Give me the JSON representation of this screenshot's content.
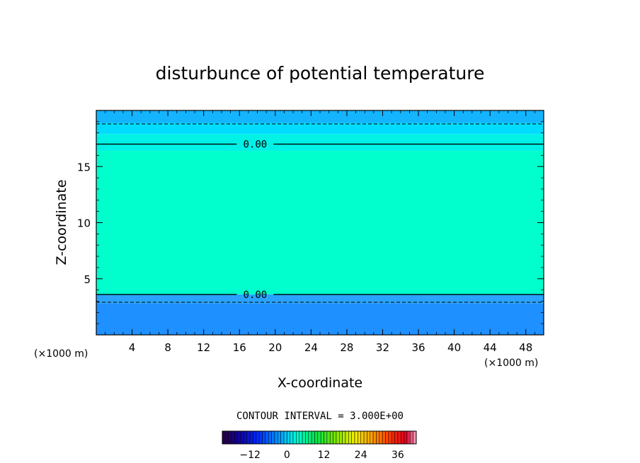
{
  "chart_data": {
    "type": "heatmap",
    "title": "disturbunce of potential temperature",
    "xlabel": "X-coordinate",
    "ylabel": "Z-coordinate",
    "x_unit_left": "(×1000 m)",
    "x_unit_right": "(×1000 m)",
    "xlim": [
      0,
      50
    ],
    "ylim": [
      0,
      20
    ],
    "x_ticks": [
      4,
      8,
      12,
      16,
      20,
      24,
      28,
      32,
      36,
      40,
      44,
      48
    ],
    "y_ticks": [
      5,
      10,
      15
    ],
    "field_levels": [
      {
        "z_from": 0,
        "z_to": 2.8,
        "value": -3,
        "color": "#1e90ff"
      },
      {
        "z_from": 2.8,
        "z_to": 3.6,
        "value": -1,
        "color": "#29a3ff"
      },
      {
        "z_from": 3.6,
        "z_to": 16.4,
        "value": 1.5,
        "color": "#00ffcc"
      },
      {
        "z_from": 16.4,
        "z_to": 17.9,
        "value": 0.5,
        "color": "#00f2e6"
      },
      {
        "z_from": 17.9,
        "z_to": 18.9,
        "value": -0.5,
        "color": "#00dcff"
      },
      {
        "z_from": 18.9,
        "z_to": 20,
        "value": -1.5,
        "color": "#14b4ff"
      }
    ],
    "contours": [
      {
        "level": 0,
        "style": "solid",
        "z": 17.0,
        "label": "0.00"
      },
      {
        "level": 0,
        "style": "solid",
        "z": 3.6,
        "label": "0.00"
      },
      {
        "level": -3,
        "style": "dashed",
        "z": 18.8
      },
      {
        "level": -3,
        "style": "dashed",
        "z": 2.9
      }
    ],
    "contour_interval_text": "CONTOUR INTERVAL = 3.000E+00",
    "colorbar": {
      "min": -21,
      "max": 42,
      "tick_values": [
        -12,
        0,
        12,
        24,
        36
      ],
      "tick_labels": [
        "−12",
        "0",
        "12",
        "24",
        "36"
      ]
    }
  }
}
